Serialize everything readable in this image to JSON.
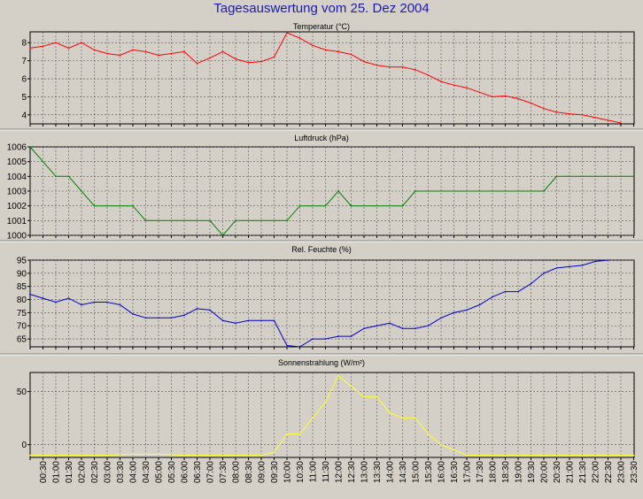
{
  "page_title": "Tagesauswertung vom 25. Dez 2004",
  "x_labels": [
    "00:30",
    "01:00",
    "01:30",
    "02:00",
    "02:30",
    "03:00",
    "03:30",
    "04:00",
    "04:30",
    "05:00",
    "05:30",
    "06:00",
    "06:30",
    "07:00",
    "07:30",
    "08:00",
    "08:30",
    "09:00",
    "09:30",
    "10:00",
    "10:30",
    "11:00",
    "11:30",
    "12:00",
    "12:30",
    "13:00",
    "13:30",
    "14:00",
    "14:30",
    "15:00",
    "15:30",
    "16:00",
    "16:30",
    "17:00",
    "17:30",
    "18:00",
    "18:30",
    "19:00",
    "19:30",
    "20:00",
    "20:30",
    "21:00",
    "21:30",
    "22:00",
    "22:30",
    "23:00",
    "23:30"
  ],
  "chart_data": [
    {
      "type": "line",
      "title": "Temperatur (°C)",
      "color": "#ff0000",
      "ylim": [
        3.5,
        8.6
      ],
      "yticks": [
        4,
        5,
        6,
        7,
        8
      ],
      "grid": true,
      "x": [
        "00:00",
        "00:30",
        "01:00",
        "01:30",
        "02:00",
        "02:30",
        "03:00",
        "03:30",
        "04:00",
        "04:30",
        "05:00",
        "05:30",
        "06:00",
        "06:30",
        "07:00",
        "07:30",
        "08:00",
        "08:30",
        "09:00",
        "09:30",
        "10:00",
        "10:30",
        "11:00",
        "11:30",
        "12:00",
        "12:30",
        "13:00",
        "13:30",
        "14:00",
        "14:30",
        "15:00",
        "15:30",
        "16:00",
        "16:30",
        "17:00",
        "17:30",
        "18:00",
        "18:30",
        "19:00",
        "19:30",
        "20:00",
        "20:30",
        "21:00",
        "21:30",
        "22:00",
        "22:30",
        "23:00"
      ],
      "values": [
        7.7,
        7.8,
        8.0,
        7.7,
        8.0,
        7.6,
        7.4,
        7.3,
        7.6,
        7.5,
        7.3,
        7.4,
        7.5,
        6.85,
        7.15,
        7.5,
        7.1,
        6.9,
        6.95,
        7.2,
        8.55,
        8.25,
        7.85,
        7.6,
        7.5,
        7.35,
        6.95,
        6.75,
        6.65,
        6.65,
        6.5,
        6.2,
        5.85,
        5.65,
        5.5,
        5.25,
        5.0,
        5.05,
        4.9,
        4.65,
        4.35,
        4.15,
        4.05,
        4.0,
        3.85,
        3.7,
        3.55
      ]
    },
    {
      "type": "line",
      "title": "Luftdruck (hPa)",
      "color": "#008000",
      "ylim": [
        1000,
        1006
      ],
      "yticks": [
        1000,
        1001,
        1002,
        1003,
        1004,
        1005,
        1006
      ],
      "grid": true,
      "x": [
        "00:00",
        "01:00",
        "01:30",
        "02:30",
        "04:00",
        "04:30",
        "07:00",
        "07:30",
        "08:00",
        "10:00",
        "10:30",
        "11:30",
        "12:00",
        "12:30",
        "14:30",
        "15:00",
        "20:00",
        "20:30",
        "23:30"
      ],
      "values": [
        1006,
        1004,
        1004,
        1002,
        1002,
        1001,
        1001,
        1000,
        1001,
        1001,
        1002,
        1002,
        1003,
        1002,
        1002,
        1003,
        1003,
        1004,
        1004
      ]
    },
    {
      "type": "line",
      "title": "Rel. Feuchte (%)",
      "color": "#0000cc",
      "ylim": [
        62,
        95
      ],
      "yticks": [
        65,
        70,
        75,
        80,
        85,
        90,
        95
      ],
      "grid": true,
      "x": [
        "00:00",
        "00:30",
        "01:00",
        "01:30",
        "02:00",
        "02:30",
        "03:00",
        "03:30",
        "04:00",
        "04:30",
        "05:00",
        "05:30",
        "06:00",
        "06:30",
        "07:00",
        "07:30",
        "08:00",
        "08:30",
        "09:00",
        "09:30",
        "10:00",
        "10:30",
        "11:00",
        "11:30",
        "12:00",
        "12:30",
        "13:00",
        "13:30",
        "14:00",
        "14:30",
        "15:00",
        "15:30",
        "16:00",
        "16:30",
        "17:00",
        "17:30",
        "18:00",
        "18:30",
        "19:00",
        "19:30",
        "20:00",
        "20:30",
        "21:00",
        "21:30",
        "22:00",
        "22:30"
      ],
      "values": [
        82,
        80.5,
        79,
        80.5,
        78,
        79,
        79,
        78,
        74.5,
        73,
        73,
        73,
        74,
        76.5,
        76,
        72,
        71,
        72,
        72,
        72,
        62.5,
        62,
        65,
        65,
        66,
        66,
        69,
        70,
        71,
        69,
        69,
        70,
        73,
        75,
        76,
        78,
        81,
        83,
        83,
        86,
        90,
        92,
        92.5,
        93,
        94.5,
        95
      ]
    },
    {
      "type": "line",
      "title": "Sonnenstrahlung (W/m²)",
      "color": "#ffff33",
      "ylim": [
        -12,
        68
      ],
      "yticks": [
        0,
        50
      ],
      "grid": true,
      "x": [
        "00:00",
        "01:00",
        "02:00",
        "03:00",
        "04:00",
        "05:00",
        "06:00",
        "07:00",
        "08:00",
        "09:00",
        "09:30",
        "10:00",
        "10:30",
        "11:00",
        "11:30",
        "12:00",
        "12:30",
        "13:00",
        "13:30",
        "14:00",
        "14:30",
        "15:00",
        "15:30",
        "16:00",
        "16:30",
        "17:00",
        "17:30",
        "18:00",
        "19:00",
        "20:00",
        "21:00",
        "22:00",
        "23:00",
        "23:30"
      ],
      "values": [
        -10,
        -10,
        -10,
        -10,
        -9,
        -9,
        -10,
        -10,
        -10,
        -10,
        -7,
        10,
        10,
        25,
        40,
        65,
        55,
        45,
        45,
        30,
        25,
        25,
        10,
        0,
        -5,
        -10,
        -10,
        -10,
        -10,
        -10,
        -10,
        -10,
        -10,
        -10
      ]
    }
  ]
}
